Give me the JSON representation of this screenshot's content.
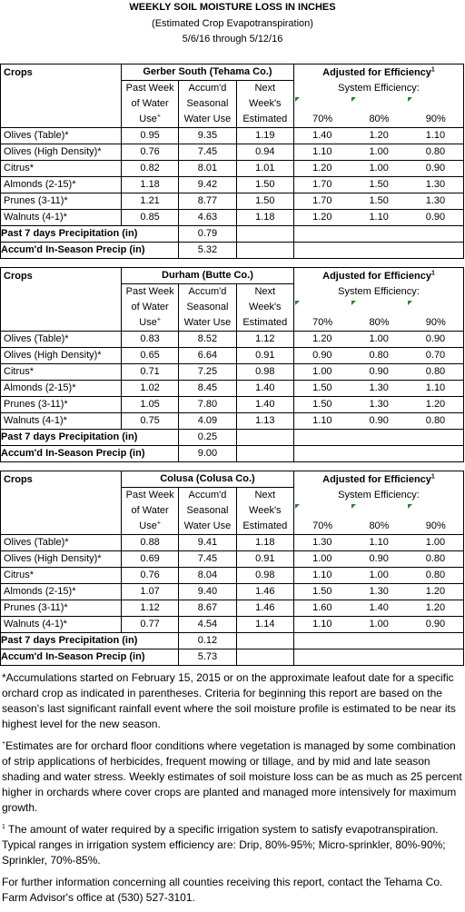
{
  "header": {
    "title": "WEEKLY SOIL MOISTURE LOSS IN INCHES",
    "subtitle": "(Estimated Crop Evapotranspiration)",
    "date_range": "5/6/16 through 5/12/16"
  },
  "labels": {
    "crops": "Crops",
    "adjusted": "Adjusted for Efficiency",
    "adjusted_sup": "1",
    "system_eff": "System Efficiency:",
    "col1_l1": "Past Week",
    "col1_l2": "of Water",
    "col1_l3": "Use",
    "col1_sup": "+",
    "col2_l1": "Accum'd",
    "col2_l2": "Seasonal",
    "col2_l3": "Water Use",
    "col3_l1": "Next",
    "col3_l2": "Week's",
    "col3_l3": "Estimated",
    "eff1": "70%",
    "eff2": "80%",
    "eff3": "90%",
    "precip_week": "Past 7 days Precipitation (in)",
    "precip_season": "Accum'd In-Season Precip (in)"
  },
  "sections": [
    {
      "location": "Gerber South (Tehama Co.)",
      "rows": [
        {
          "crop": "Olives (Table)*",
          "past": "0.95",
          "accum": "9.35",
          "next": "1.19",
          "e70": "1.40",
          "e80": "1.20",
          "e90": "1.10"
        },
        {
          "crop": "Olives (High Density)*",
          "past": "0.76",
          "accum": "7.45",
          "next": "0.94",
          "e70": "1.10",
          "e80": "1.00",
          "e90": "0.80"
        },
        {
          "crop": "Citrus*",
          "past": "0.82",
          "accum": "8.01",
          "next": "1.01",
          "e70": "1.20",
          "e80": "1.00",
          "e90": "0.90"
        },
        {
          "crop": "Almonds (2-15)*",
          "past": "1.18",
          "accum": "9.42",
          "next": "1.50",
          "e70": "1.70",
          "e80": "1.50",
          "e90": "1.30"
        },
        {
          "crop": "Prunes (3-11)*",
          "past": "1.21",
          "accum": "8.77",
          "next": "1.50",
          "e70": "1.70",
          "e80": "1.50",
          "e90": "1.30"
        },
        {
          "crop": "Walnuts (4-1)*",
          "past": "0.85",
          "accum": "4.63",
          "next": "1.18",
          "e70": "1.20",
          "e80": "1.10",
          "e90": "0.90"
        }
      ],
      "precip_week": "0.79",
      "precip_season": "5.32"
    },
    {
      "location": "Durham (Butte Co.)",
      "rows": [
        {
          "crop": "Olives (Table)*",
          "past": "0.83",
          "accum": "8.52",
          "next": "1.12",
          "e70": "1.20",
          "e80": "1.00",
          "e90": "0.90"
        },
        {
          "crop": "Olives (High Density)*",
          "past": "0.65",
          "accum": "6.64",
          "next": "0.91",
          "e70": "0.90",
          "e80": "0.80",
          "e90": "0.70"
        },
        {
          "crop": "Citrus*",
          "past": "0.71",
          "accum": "7.25",
          "next": "0.98",
          "e70": "1.00",
          "e80": "0.90",
          "e90": "0.80"
        },
        {
          "crop": "Almonds (2-15)*",
          "past": "1.02",
          "accum": "8.45",
          "next": "1.40",
          "e70": "1.50",
          "e80": "1.30",
          "e90": "1.10"
        },
        {
          "crop": "Prunes (3-11)*",
          "past": "1.05",
          "accum": "7.80",
          "next": "1.40",
          "e70": "1.50",
          "e80": "1.30",
          "e90": "1.20"
        },
        {
          "crop": "Walnuts (4-1)*",
          "past": "0.75",
          "accum": "4.09",
          "next": "1.13",
          "e70": "1.10",
          "e80": "0.90",
          "e90": "0.80"
        }
      ],
      "precip_week": "0.25",
      "precip_season": "9.00"
    },
    {
      "location": "Colusa (Colusa Co.)",
      "rows": [
        {
          "crop": "Olives (Table)*",
          "past": "0.88",
          "accum": "9.41",
          "next": "1.18",
          "e70": "1.30",
          "e80": "1.10",
          "e90": "1.00"
        },
        {
          "crop": "Olives (High Density)*",
          "past": "0.69",
          "accum": "7.45",
          "next": "0.91",
          "e70": "1.00",
          "e80": "0.90",
          "e90": "0.80"
        },
        {
          "crop": "Citrus*",
          "past": "0.76",
          "accum": "8.04",
          "next": "0.98",
          "e70": "1.10",
          "e80": "1.00",
          "e90": "0.80"
        },
        {
          "crop": "Almonds (2-15)*",
          "past": "1.07",
          "accum": "9.40",
          "next": "1.46",
          "e70": "1.50",
          "e80": "1.30",
          "e90": "1.20"
        },
        {
          "crop": "Prunes (3-11)*",
          "past": "1.12",
          "accum": "8.67",
          "next": "1.46",
          "e70": "1.60",
          "e80": "1.40",
          "e90": "1.20"
        },
        {
          "crop": "Walnuts (4-1)*",
          "past": "0.77",
          "accum": "4.54",
          "next": "1.14",
          "e70": "1.10",
          "e80": "1.00",
          "e90": "0.90"
        }
      ],
      "precip_week": "0.12",
      "precip_season": "5.73"
    }
  ],
  "notes": {
    "n1": "*Accumulations started on February 15, 2015 or on the approximate leafout date for a specific orchard crop as indicated in parentheses.  Criteria for beginning this report are based on the season's last significant rainfall event where the soil moisture profile is estimated to be near its highest level for the new season.",
    "n2_sup": "+",
    "n2": "Estimates are for orchard floor conditions where vegetation is managed by some combination of strip applications of herbicides, frequent mowing or tillage, and by mid and late season shading and water stress.  Weekly estimates of soil moisture loss can be as much as 25 percent higher in orchards where cover crops are planted and managed more intensively for maximum growth.",
    "n3_sup": "1",
    "n3": " The amount of water required by a specific irrigation system to satisfy evapotranspiration. Typical ranges in irrigation system efficiency are: Drip, 80%-95%; Micro-sprinkler, 80%-90%; Sprinkler, 70%-85%.",
    "n4": "For further information concerning all counties receiving this report, contact the Tehama Co. Farm Advisor's office at (530) 527-3101."
  },
  "colors": {
    "triangle": "#2e7d32"
  }
}
